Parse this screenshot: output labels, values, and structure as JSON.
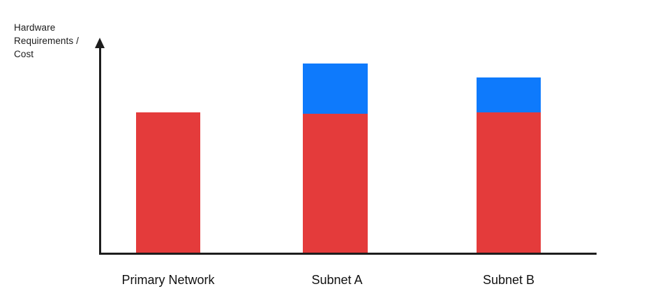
{
  "chart_data": {
    "type": "bar",
    "stacked": true,
    "title": "",
    "xlabel": "",
    "ylabel": "Hardware Requirements / Cost",
    "categories": [
      "Primary Network",
      "Subnet A",
      "Subnet B"
    ],
    "series": [
      {
        "name": "red-base-segment",
        "color": "#E43B3B",
        "values": [
          67,
          66.5,
          67
        ]
      },
      {
        "name": "blue-top-segment",
        "color": "#0E7AFC",
        "values": [
          0,
          23.5,
          16.5
        ]
      }
    ],
    "value_units": "relative (% of axis height); no numeric scale or tick labels shown",
    "axis": {
      "color": "#1D1D1D",
      "y_arrow": true,
      "ticks": "none",
      "grid": false
    },
    "legend_position": "none"
  }
}
